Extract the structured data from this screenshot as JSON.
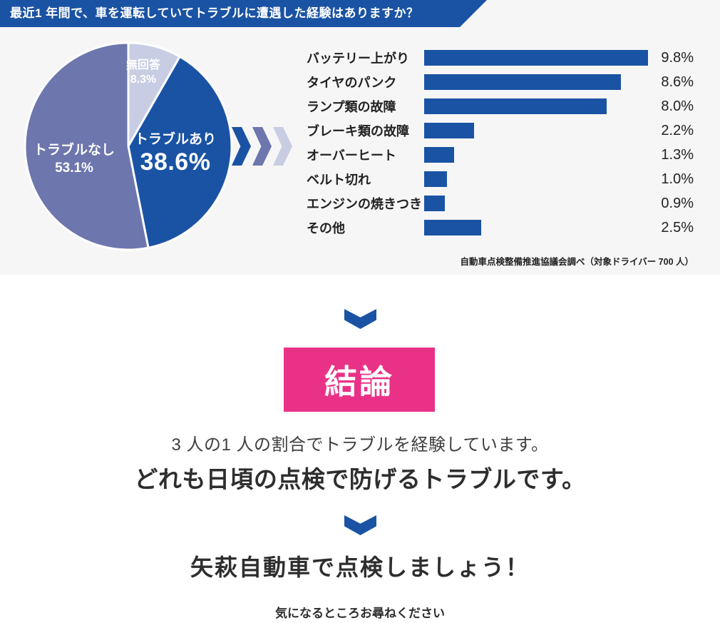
{
  "header": {
    "title": "最近1 年間で、車を運転していてトラブルに遭遇した経験はありますか？"
  },
  "colors": {
    "brand_blue": "#1a53a4",
    "slate_blue": "#6d76ad",
    "lavender": "#c9cde3",
    "accent_pink": "#e93287",
    "panel_gray": "#f6f6f7",
    "text_dark": "#333333"
  },
  "chart_data": [
    {
      "type": "pie",
      "start_angle_deg": -90,
      "direction": "clockwise",
      "slices": [
        {
          "label": "無回答",
          "value": 8.3,
          "display": "8.3%",
          "color": "#c9cde3"
        },
        {
          "label": "トラブルあり",
          "value": 38.6,
          "display": "38.6%",
          "color": "#1a53a4"
        },
        {
          "label": "トラブルなし",
          "value": 53.1,
          "display": "53.1%",
          "color": "#6d76ad"
        }
      ]
    },
    {
      "type": "bar",
      "orientation": "horizontal",
      "categories": [
        "バッテリー上がり",
        "タイヤのパンク",
        "ランプ類の故障",
        "ブレーキ類の故障",
        "オーバーヒート",
        "ベルト切れ",
        "エンジンの焼きつき",
        "その他"
      ],
      "values": [
        9.8,
        8.6,
        8.0,
        2.2,
        1.3,
        1.0,
        0.9,
        2.5
      ],
      "value_labels": [
        "9.8%",
        "8.6%",
        "8.0%",
        "2.2%",
        "1.3%",
        "1.0%",
        "0.9%",
        "2.5%"
      ],
      "xmax": 9.8,
      "bar_color": "#1a53a4",
      "grid": false,
      "legend": false
    }
  ],
  "source_note": "自動車点検整備推進協議会調べ（対象ドライバー 700 人）",
  "conclusion": {
    "badge_label": "結論",
    "line1": "3 人の1 人の割合でトラブルを経験しています。",
    "line2": "どれも日頃の点検で防げるトラブルです。",
    "cta": "矢萩自動車で点検しましょう！",
    "note": "気になるところお尋ねください"
  }
}
